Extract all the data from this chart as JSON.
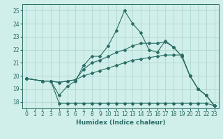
{
  "xlabel": "Humidex (Indice chaleur)",
  "bg_color": "#d0eeea",
  "grid_color": "#b0d8d4",
  "line_color": "#2a6e65",
  "spine_color": "#2a6e65",
  "xlim": [
    -0.5,
    23.5
  ],
  "ylim": [
    17.5,
    25.5
  ],
  "xticks": [
    0,
    1,
    2,
    3,
    4,
    5,
    6,
    7,
    8,
    9,
    10,
    11,
    12,
    13,
    14,
    15,
    16,
    17,
    18,
    19,
    20,
    21,
    22,
    23
  ],
  "yticks": [
    18,
    19,
    20,
    21,
    22,
    23,
    24,
    25
  ],
  "lines": [
    {
      "x": [
        0,
        2,
        3,
        4,
        5,
        6,
        7,
        8,
        9,
        10,
        11,
        12,
        13,
        14,
        15,
        16,
        17,
        18,
        19,
        20,
        21,
        22,
        23
      ],
      "y": [
        19.8,
        19.6,
        19.6,
        17.9,
        17.9,
        17.9,
        17.9,
        17.9,
        17.9,
        17.9,
        17.9,
        17.9,
        17.9,
        17.9,
        17.9,
        17.9,
        17.9,
        17.9,
        17.9,
        17.9,
        17.9,
        17.9,
        17.7
      ]
    },
    {
      "x": [
        0,
        2,
        3,
        4,
        5,
        6,
        7,
        8,
        9,
        10,
        11,
        12,
        13,
        14,
        15,
        16,
        17,
        18,
        19,
        20,
        21,
        22,
        23
      ],
      "y": [
        19.8,
        19.6,
        19.6,
        19.5,
        19.6,
        19.7,
        20.0,
        20.2,
        20.4,
        20.6,
        20.8,
        21.0,
        21.2,
        21.3,
        21.4,
        21.5,
        21.6,
        21.6,
        21.6,
        20.0,
        19.0,
        18.5,
        17.7
      ]
    },
    {
      "x": [
        0,
        2,
        3,
        4,
        5,
        6,
        7,
        8,
        9,
        10,
        11,
        12,
        13,
        14,
        15,
        16,
        17,
        18,
        19,
        20,
        21,
        22,
        23
      ],
      "y": [
        19.8,
        19.6,
        19.6,
        19.5,
        19.6,
        19.7,
        20.5,
        21.0,
        21.2,
        21.5,
        21.8,
        22.0,
        22.3,
        22.5,
        22.5,
        22.5,
        22.6,
        22.2,
        21.5,
        20.0,
        19.0,
        18.5,
        17.7
      ]
    },
    {
      "x": [
        0,
        2,
        3,
        4,
        5,
        6,
        7,
        8,
        9,
        10,
        11,
        12,
        13,
        14,
        15,
        16,
        17,
        18,
        19,
        20,
        21,
        22,
        23
      ],
      "y": [
        19.8,
        19.6,
        19.6,
        18.5,
        19.2,
        19.6,
        20.8,
        21.5,
        21.5,
        22.3,
        23.5,
        25.0,
        24.0,
        23.3,
        22.0,
        21.8,
        22.7,
        22.2,
        21.5,
        20.0,
        19.0,
        18.5,
        17.7
      ]
    }
  ]
}
